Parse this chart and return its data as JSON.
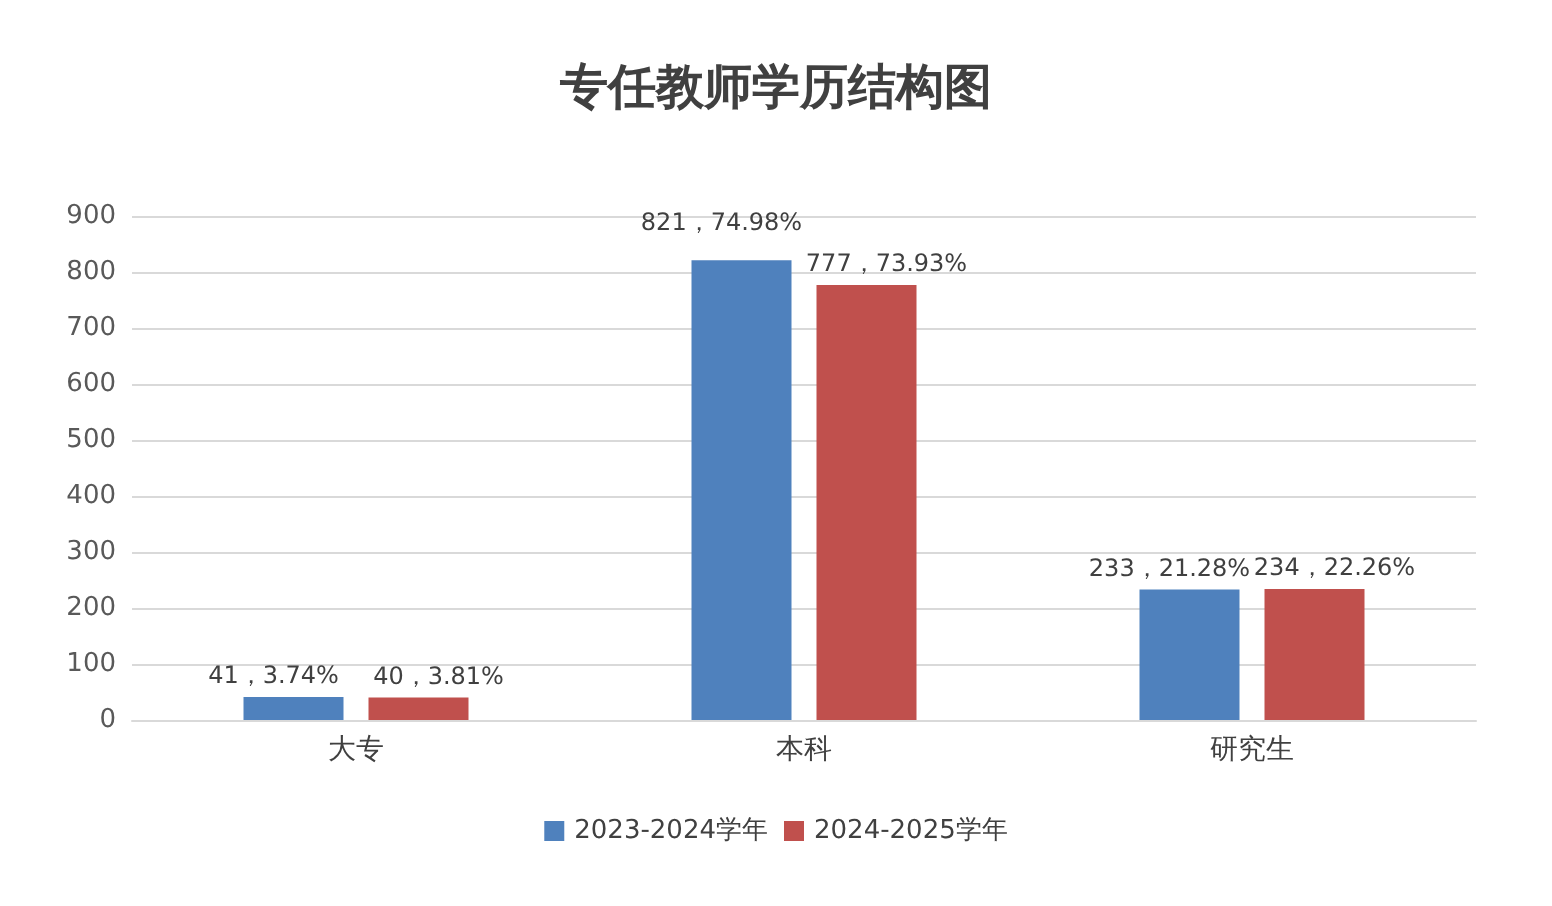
{
  "chart_data": {
    "type": "bar",
    "title": "专任教师学历结构图",
    "categories": [
      "大专",
      "本科",
      "研究生"
    ],
    "series": [
      {
        "name": "2023-2024学年",
        "color": "#4f81bd",
        "values": [
          41,
          821,
          233
        ],
        "value_labels": [
          "41，3.74%",
          "821，74.98%",
          "233，21.28%"
        ]
      },
      {
        "name": "2024-2025学年",
        "color": "#c0504d",
        "values": [
          40,
          777,
          234
        ],
        "value_labels": [
          "40，3.81%",
          "777，73.93%",
          "234，22.26%"
        ]
      }
    ],
    "ylim": [
      0,
      900
    ],
    "yticks": [
      0,
      100,
      200,
      300,
      400,
      500,
      600,
      700,
      800,
      900
    ],
    "grid": "y",
    "legend": "bottom"
  }
}
